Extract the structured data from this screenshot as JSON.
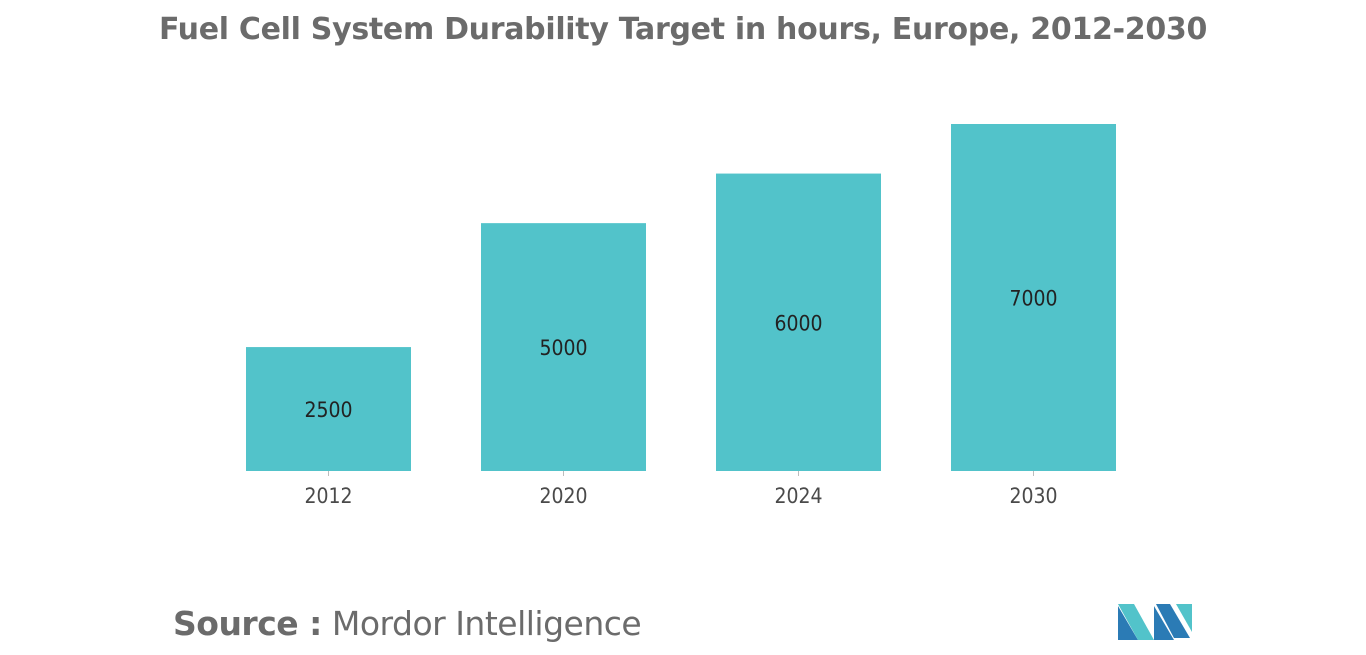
{
  "chart_data": {
    "type": "bar",
    "title": "Fuel Cell System Durability Target in hours, Europe, 2012-2030",
    "categories": [
      "2012",
      "2020",
      "2024",
      "2030"
    ],
    "values": [
      2500,
      5000,
      6000,
      7000
    ],
    "data_labels": [
      "2500",
      "5000",
      "6000",
      "7000"
    ],
    "xlabel": "",
    "ylabel": "",
    "ylim": [
      0,
      7000
    ],
    "grid": false,
    "legend": "none",
    "bar_color": "#52c3ca"
  },
  "source": {
    "prefix": "Source :",
    "name": "Mordor Intelligence"
  },
  "logo": {
    "icon": "mordor-intelligence-logo",
    "colors": [
      "#2b7bb5",
      "#52c3ca"
    ]
  }
}
